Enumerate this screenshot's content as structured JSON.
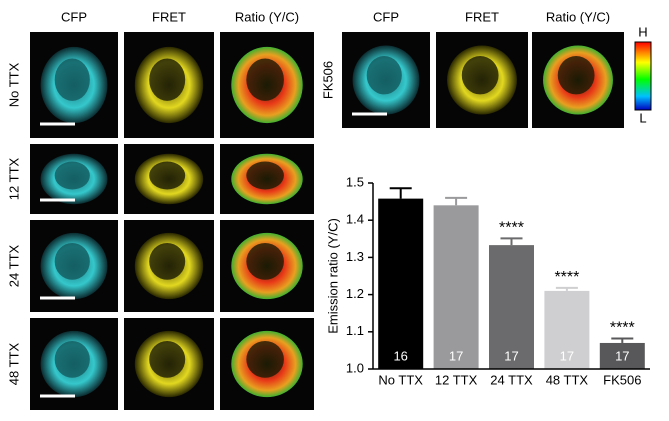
{
  "image_grid": {
    "columns": [
      "CFP",
      "FRET",
      "Ratio (Y/C)"
    ],
    "rows": [
      "No TTX",
      "12 TTX",
      "24 TTX",
      "48 TTX"
    ]
  },
  "fk506_panel": {
    "columns": [
      "CFP",
      "FRET",
      "Ratio (Y/C)"
    ],
    "row": "FK506",
    "scale_high": "H",
    "scale_low": "L"
  },
  "chart_data": {
    "type": "bar",
    "ylabel": "Emission ratio (Y/C)",
    "categories": [
      "No TTX",
      "12 TTX",
      "24 TTX",
      "48 TTX",
      "FK506"
    ],
    "values": [
      1.458,
      1.44,
      1.333,
      1.21,
      1.07
    ],
    "errors": [
      0.028,
      0.02,
      0.018,
      0.008,
      0.012
    ],
    "colors": [
      "#000000",
      "#9a9a9c",
      "#6b6b6d",
      "#cfcfd1",
      "#58585a"
    ],
    "bar_labels": [
      "16",
      "17",
      "17",
      "17",
      "17"
    ],
    "annotations": [
      null,
      null,
      "****",
      "****",
      "****"
    ],
    "ylim": [
      1.0,
      1.5
    ],
    "yticks": [
      {
        "value": 1.0,
        "label": "1.0"
      },
      1.1,
      1.2,
      1.3,
      1.4,
      {
        "value": 1.5,
        "label": "1.5"
      }
    ]
  }
}
